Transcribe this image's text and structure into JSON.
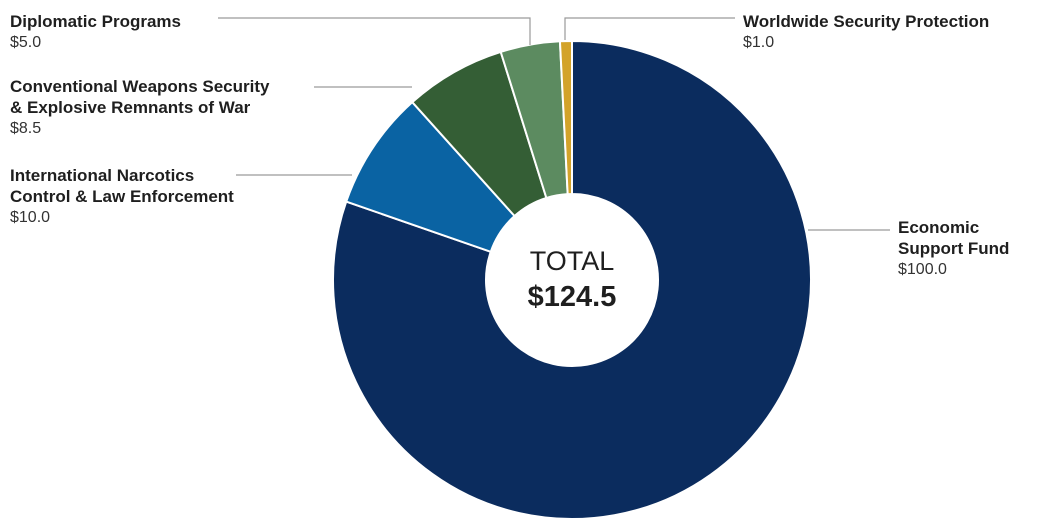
{
  "chart_data": {
    "type": "pie",
    "donut": true,
    "center": {
      "title": "TOTAL",
      "value": "$124.5"
    },
    "slices": [
      {
        "label": "Economic\nSupport Fund",
        "value": 100.0,
        "display": "$100.0",
        "color": "#0b2c5e"
      },
      {
        "label": "International Narcotics\nControl & Law Enforcement",
        "value": 10.0,
        "display": "$10.0",
        "color": "#0a63a3"
      },
      {
        "label": "Conventional Weapons Security\n& Explosive Remnants of War",
        "value": 8.5,
        "display": "$8.5",
        "color": "#345e35"
      },
      {
        "label": "Diplomatic Programs",
        "value": 5.0,
        "display": "$5.0",
        "color": "#5c8b60"
      },
      {
        "label": "Worldwide Security Protection",
        "value": 1.0,
        "display": "$1.0",
        "color": "#d3a32a"
      }
    ]
  }
}
